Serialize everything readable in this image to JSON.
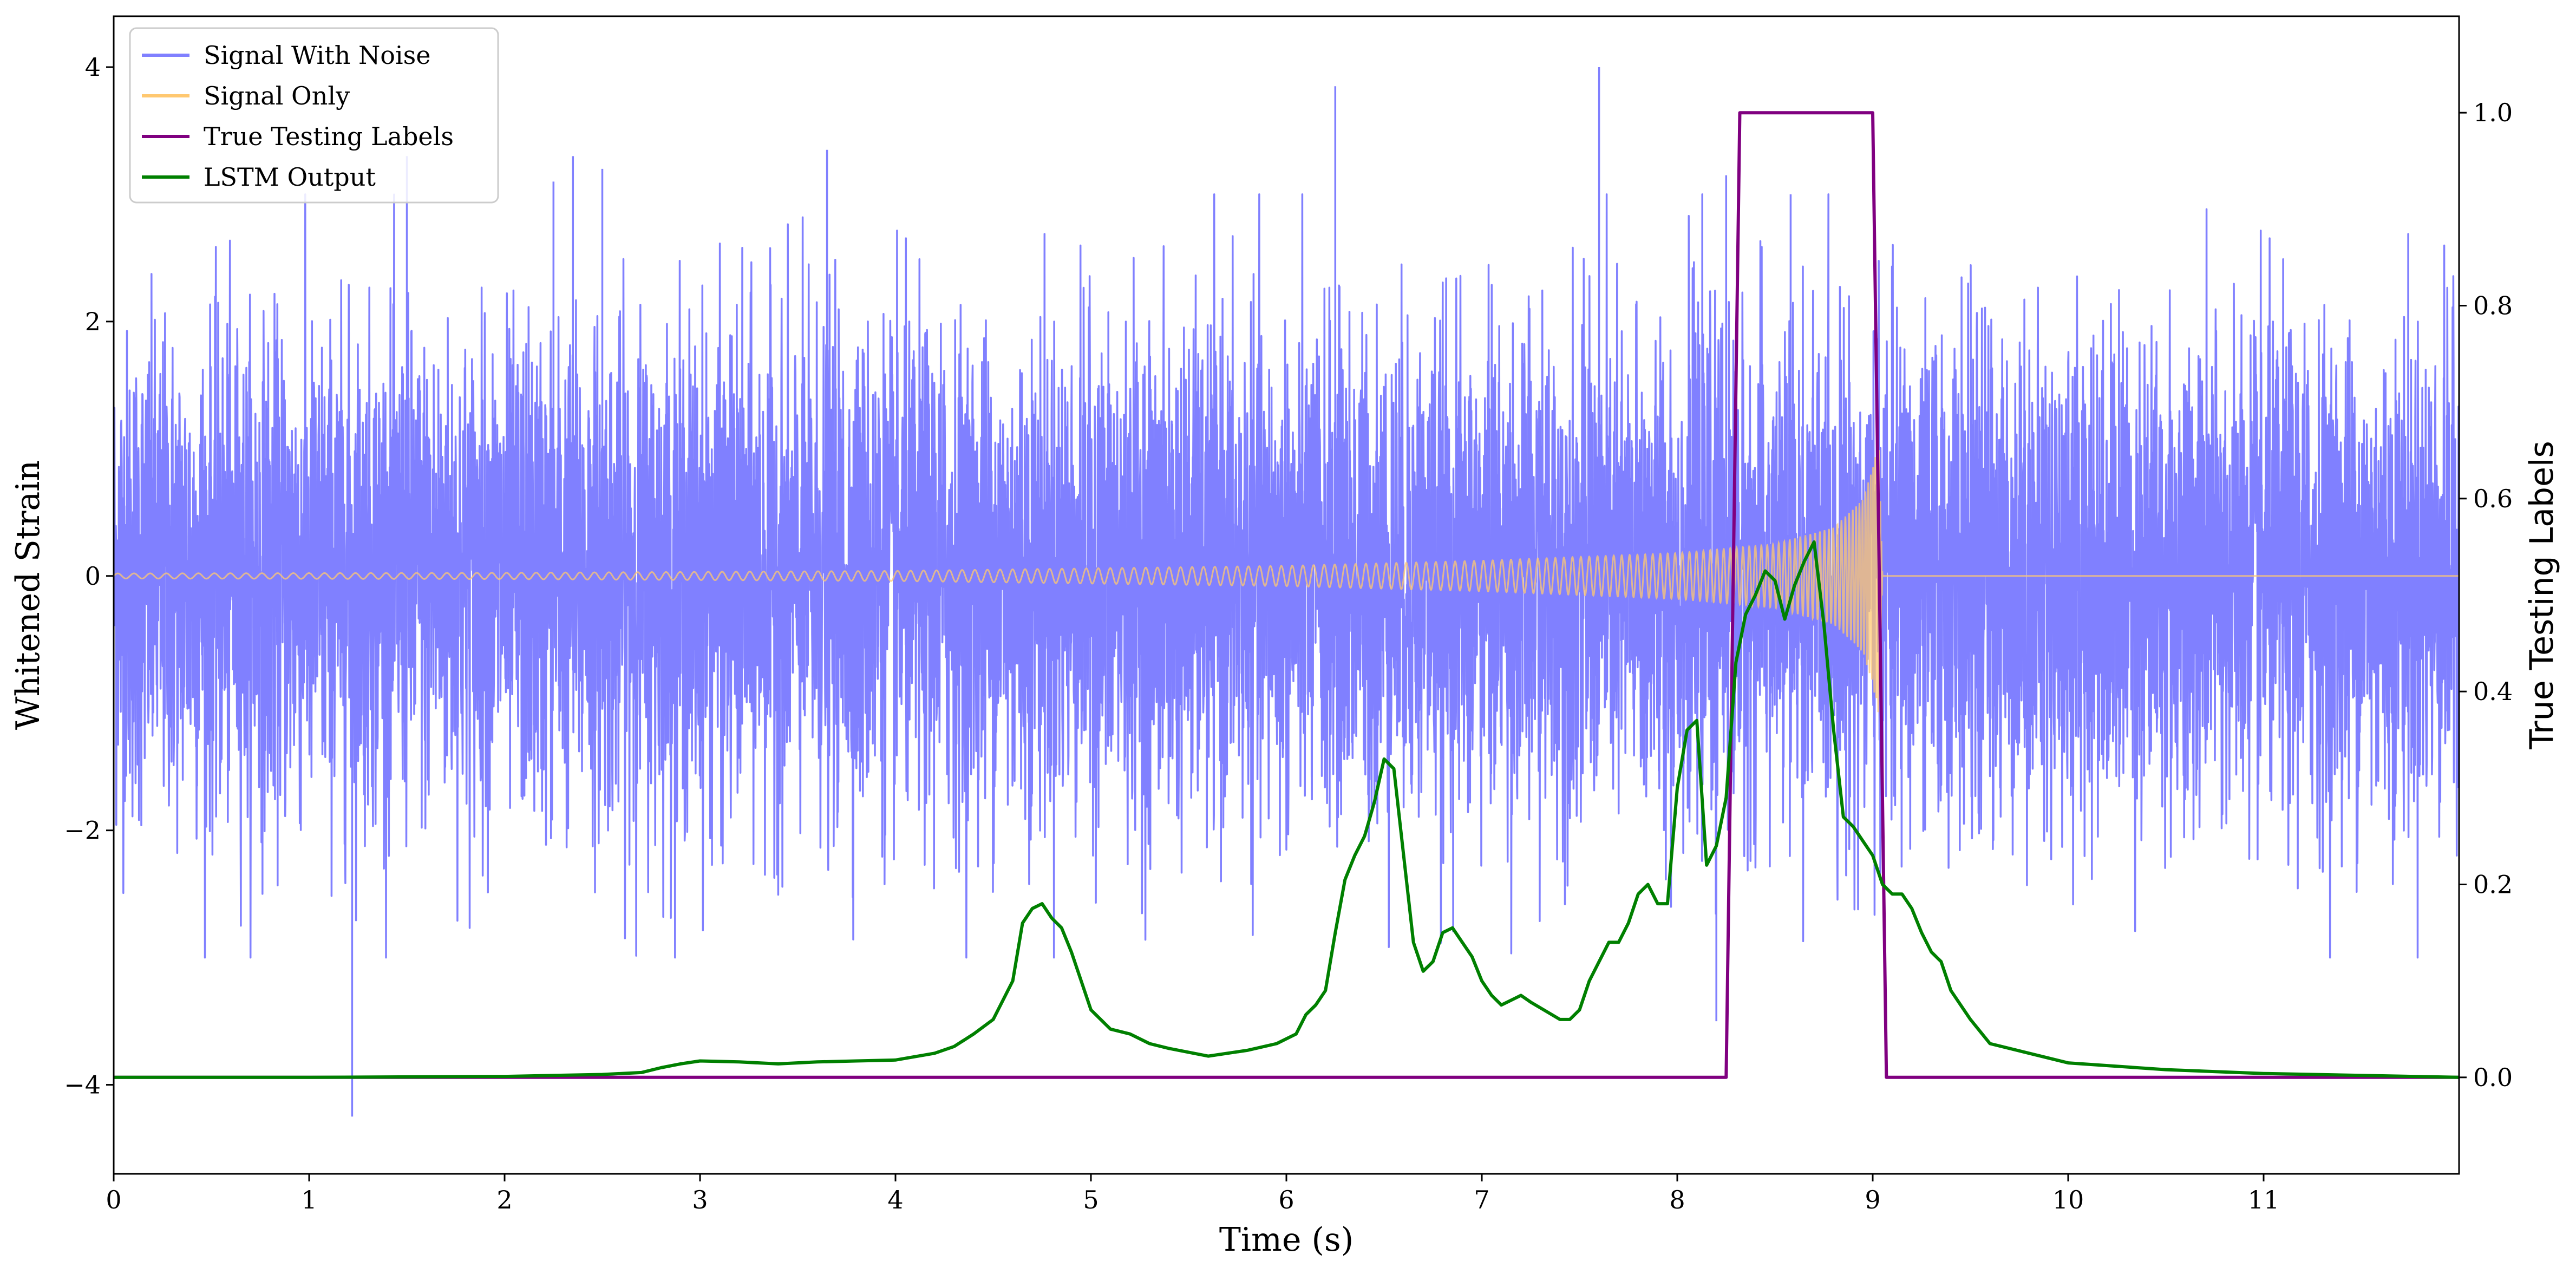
{
  "chart_data": {
    "type": "line",
    "xlabel": "Time (s)",
    "ylabel": "Whitened Strain",
    "ylabel_right": "True Testing Labels",
    "xlim": [
      0,
      12
    ],
    "ylim": [
      -4.7,
      4.4
    ],
    "ylim_right": [
      -0.1,
      1.1
    ],
    "x_ticks": [
      0,
      1,
      2,
      3,
      4,
      5,
      6,
      7,
      8,
      9,
      10,
      11
    ],
    "x_tick_labels": [
      "0",
      "1",
      "2",
      "3",
      "4",
      "5",
      "6",
      "7",
      "8",
      "9",
      "10",
      "11"
    ],
    "y_ticks": [
      -4,
      -2,
      0,
      2,
      4
    ],
    "y_tick_labels": [
      "−4",
      "−2",
      "0",
      "2",
      "4"
    ],
    "y_right_ticks": [
      0.0,
      0.2,
      0.4,
      0.6,
      0.8,
      1.0
    ],
    "y_right_tick_labels": [
      "0.0",
      "0.2",
      "0.4",
      "0.6",
      "0.8",
      "1.0"
    ],
    "grid": false,
    "legend_position": "top-left",
    "series": [
      {
        "name": "Signal With Noise",
        "axis": "left",
        "color": "#8080ff",
        "kind": "noise",
        "typical_std": 0.95,
        "notable_spikes": [
          [
            1.22,
            -4.25
          ],
          [
            1.5,
            3.3
          ],
          [
            2.25,
            3.1
          ],
          [
            2.35,
            3.3
          ],
          [
            2.5,
            3.2
          ],
          [
            3.65,
            3.35
          ],
          [
            6.25,
            3.85
          ],
          [
            7.6,
            4.0
          ],
          [
            8.25,
            3.15
          ],
          [
            8.58,
            3.0
          ],
          [
            8.2,
            -3.5
          ]
        ]
      },
      {
        "name": "Signal Only",
        "axis": "left",
        "color": "#ffc870",
        "kind": "chirp",
        "start_time": 0.0,
        "merger_time": 9.05,
        "amplitude_envelope": [
          [
            0,
            0.02
          ],
          [
            2,
            0.025
          ],
          [
            4,
            0.04
          ],
          [
            6,
            0.08
          ],
          [
            7,
            0.12
          ],
          [
            8,
            0.18
          ],
          [
            8.5,
            0.25
          ],
          [
            8.8,
            0.38
          ],
          [
            8.95,
            0.6
          ],
          [
            9.0,
            0.85
          ],
          [
            9.03,
            1.1
          ],
          [
            9.05,
            0.0
          ]
        ]
      },
      {
        "name": "True Testing Labels",
        "axis": "right",
        "color": "#800080",
        "x": [
          0,
          8.25,
          8.32,
          9.0,
          9.07,
          12.0
        ],
        "y": [
          0,
          0,
          1,
          1,
          0,
          0
        ]
      },
      {
        "name": "LSTM Output",
        "axis": "right",
        "color": "#008000",
        "x": [
          0,
          1.0,
          2.0,
          2.5,
          2.7,
          2.8,
          2.9,
          3.0,
          3.2,
          3.4,
          3.6,
          3.8,
          4.0,
          4.2,
          4.3,
          4.4,
          4.5,
          4.6,
          4.65,
          4.7,
          4.75,
          4.8,
          4.85,
          4.9,
          4.95,
          5.0,
          5.1,
          5.2,
          5.3,
          5.4,
          5.6,
          5.8,
          5.95,
          6.05,
          6.1,
          6.15,
          6.2,
          6.25,
          6.3,
          6.35,
          6.4,
          6.45,
          6.5,
          6.55,
          6.6,
          6.65,
          6.7,
          6.75,
          6.8,
          6.85,
          6.9,
          6.95,
          7.0,
          7.05,
          7.1,
          7.15,
          7.2,
          7.25,
          7.3,
          7.35,
          7.4,
          7.45,
          7.5,
          7.55,
          7.6,
          7.65,
          7.7,
          7.75,
          7.8,
          7.85,
          7.9,
          7.95,
          8.0,
          8.05,
          8.1,
          8.15,
          8.2,
          8.25,
          8.3,
          8.35,
          8.4,
          8.45,
          8.5,
          8.55,
          8.6,
          8.65,
          8.7,
          8.75,
          8.8,
          8.85,
          8.9,
          8.95,
          9.0,
          9.05,
          9.1,
          9.15,
          9.2,
          9.25,
          9.3,
          9.35,
          9.4,
          9.5,
          9.6,
          9.8,
          10.0,
          10.5,
          11.0,
          12.0
        ],
        "y": [
          0,
          0.0,
          0.001,
          0.003,
          0.005,
          0.01,
          0.014,
          0.017,
          0.016,
          0.014,
          0.016,
          0.017,
          0.018,
          0.025,
          0.032,
          0.045,
          0.06,
          0.1,
          0.16,
          0.175,
          0.18,
          0.165,
          0.155,
          0.13,
          0.1,
          0.07,
          0.05,
          0.045,
          0.035,
          0.03,
          0.022,
          0.028,
          0.035,
          0.045,
          0.065,
          0.075,
          0.09,
          0.15,
          0.205,
          0.23,
          0.25,
          0.285,
          0.33,
          0.32,
          0.23,
          0.14,
          0.11,
          0.12,
          0.15,
          0.155,
          0.14,
          0.125,
          0.1,
          0.085,
          0.075,
          0.08,
          0.085,
          0.078,
          0.072,
          0.066,
          0.06,
          0.06,
          0.07,
          0.1,
          0.12,
          0.14,
          0.14,
          0.16,
          0.19,
          0.2,
          0.18,
          0.18,
          0.3,
          0.36,
          0.37,
          0.22,
          0.24,
          0.29,
          0.43,
          0.48,
          0.5,
          0.525,
          0.515,
          0.475,
          0.51,
          0.535,
          0.555,
          0.47,
          0.36,
          0.27,
          0.26,
          0.245,
          0.23,
          0.2,
          0.19,
          0.19,
          0.175,
          0.15,
          0.13,
          0.12,
          0.09,
          0.06,
          0.035,
          0.025,
          0.015,
          0.008,
          0.004,
          0.0
        ]
      }
    ]
  }
}
